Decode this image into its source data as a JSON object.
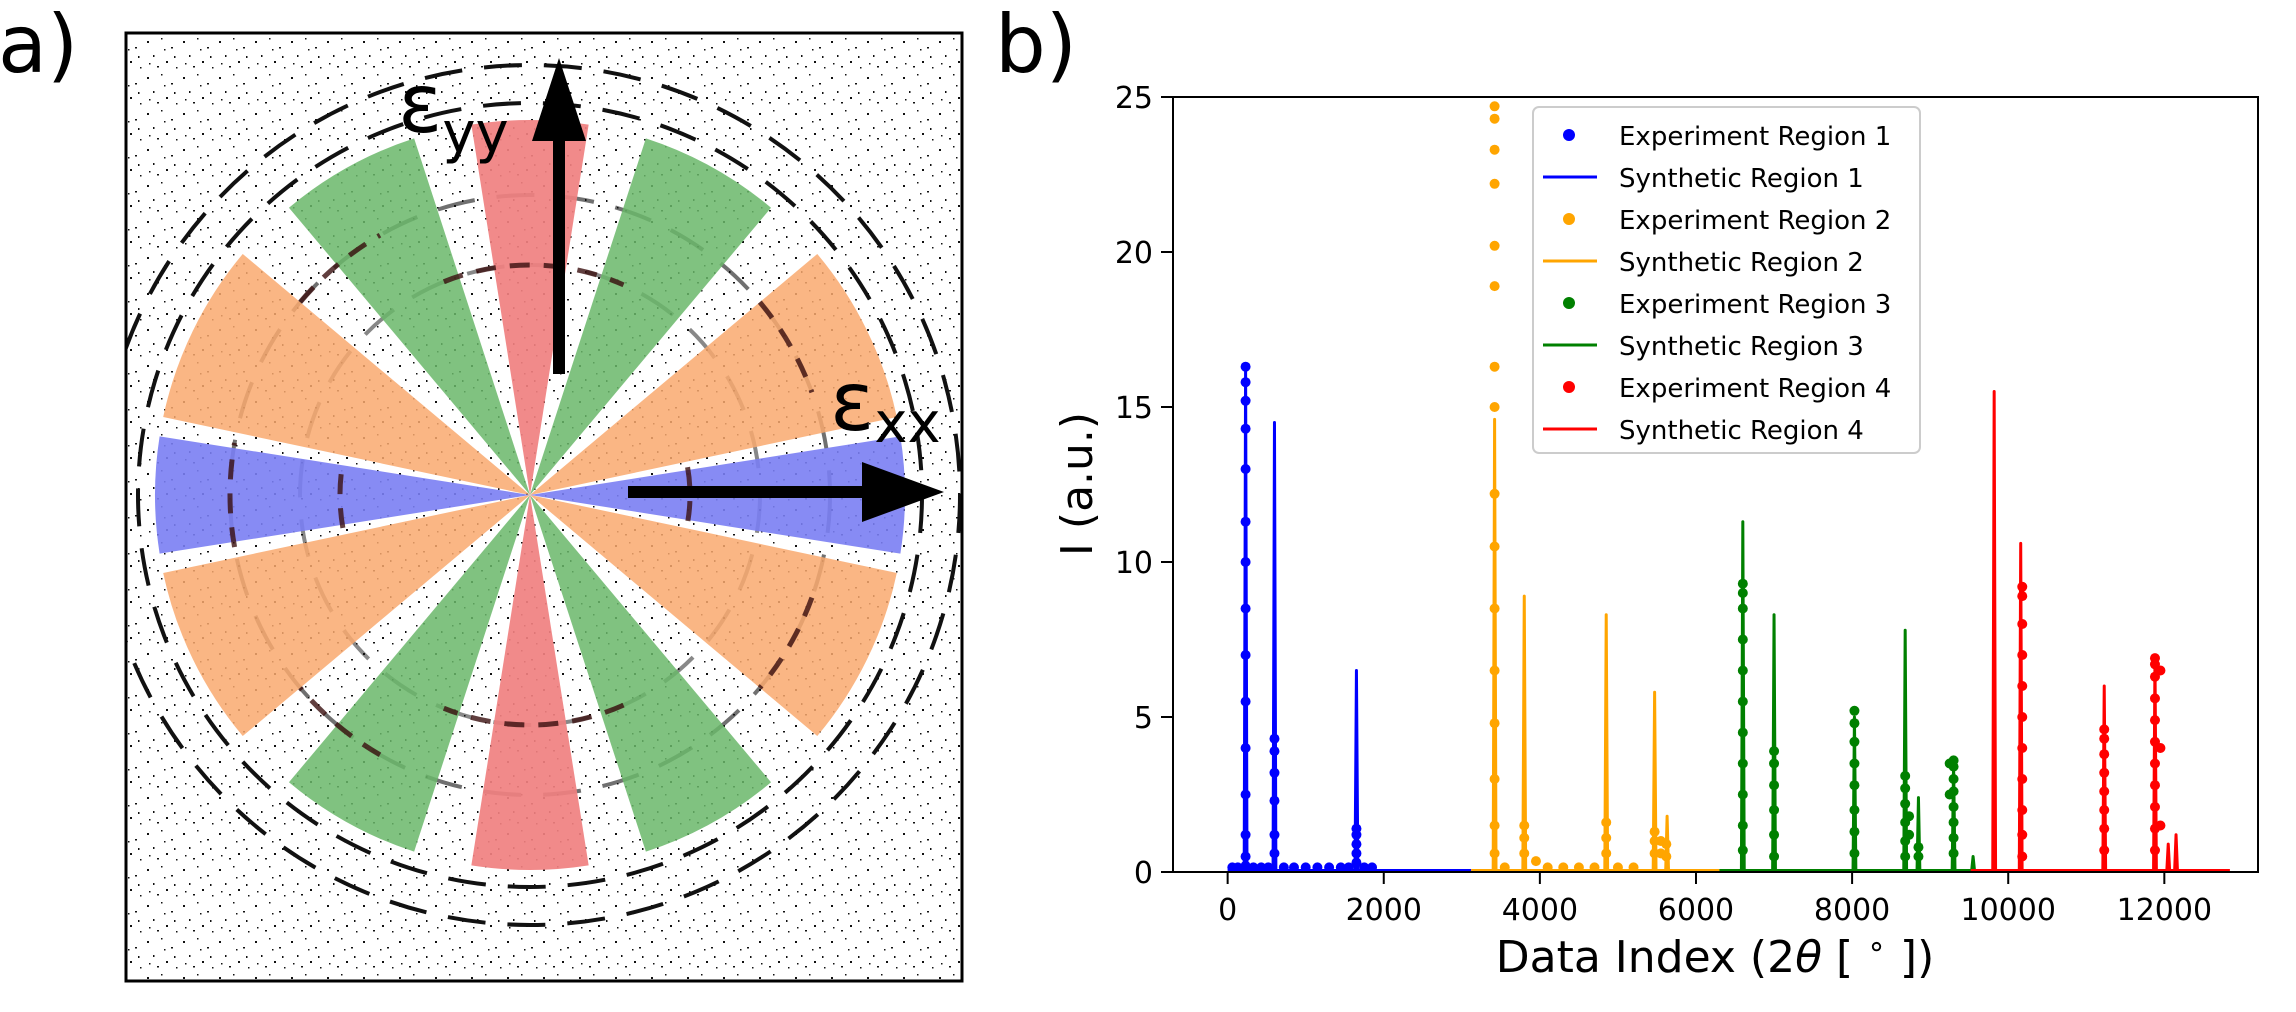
{
  "panel_a": {
    "label": "a)",
    "arrow_yy": {
      "base": "ε",
      "sub": "yy"
    },
    "arrow_xx": {
      "base": "ε",
      "sub": "xx"
    },
    "wedge_colors": {
      "red": "#f08080",
      "green": "#6ab76a",
      "orange": "#f9a96e",
      "blue": "#7a7ef3"
    }
  },
  "panel_b": {
    "label": "b)"
  },
  "chart_data": {
    "type": "line",
    "xlabel_parts": [
      "Data Index (2",
      "θ",
      " [ ",
      "∘",
      " ])"
    ],
    "ylabel": "I (a.u.)",
    "xlim": [
      -700,
      13200
    ],
    "ylim": [
      0,
      25
    ],
    "x_ticks": [
      0,
      2000,
      4000,
      6000,
      8000,
      10000,
      12000
    ],
    "x_tick_labels": [
      "0",
      "2000",
      "4000",
      "6000",
      "8000",
      "10000",
      "12000"
    ],
    "y_ticks": [
      0,
      5,
      10,
      15,
      20,
      25
    ],
    "y_tick_labels": [
      "0",
      "5",
      "10",
      "15",
      "20",
      "25"
    ],
    "legend_position": "top-right",
    "series": [
      {
        "name": "Experiment Region 1",
        "kind": "scatter",
        "color": "#0000ff",
        "points": [
          [
            230,
            16.3
          ],
          [
            230,
            15.8
          ],
          [
            230,
            15.2
          ],
          [
            230,
            14.3
          ],
          [
            230,
            13
          ],
          [
            230,
            11.3
          ],
          [
            230,
            10
          ],
          [
            230,
            8.5
          ],
          [
            230,
            7
          ],
          [
            230,
            5.5
          ],
          [
            230,
            4
          ],
          [
            230,
            2.5
          ],
          [
            230,
            1.2
          ],
          [
            230,
            0.5
          ],
          [
            230,
            0.2
          ],
          [
            600,
            4.3
          ],
          [
            600,
            3.9
          ],
          [
            600,
            3.2
          ],
          [
            600,
            2.3
          ],
          [
            600,
            1.2
          ],
          [
            600,
            0.6
          ],
          [
            1650,
            1.4
          ],
          [
            1650,
            1.2
          ],
          [
            1650,
            0.9
          ],
          [
            1650,
            0.6
          ],
          [
            1650,
            0.3
          ],
          [
            60,
            0.15
          ],
          [
            130,
            0.15
          ],
          [
            330,
            0.15
          ],
          [
            430,
            0.15
          ],
          [
            520,
            0.15
          ],
          [
            720,
            0.15
          ],
          [
            850,
            0.15
          ],
          [
            1000,
            0.15
          ],
          [
            1150,
            0.15
          ],
          [
            1300,
            0.15
          ],
          [
            1450,
            0.15
          ],
          [
            1550,
            0.15
          ],
          [
            1750,
            0.15
          ],
          [
            1850,
            0.15
          ]
        ]
      },
      {
        "name": "Synthetic Region 1",
        "kind": "line",
        "color": "#0000ff",
        "x_range": [
          0,
          3120
        ],
        "baseline": 0.05,
        "peaks": [
          [
            230,
            16.3
          ],
          [
            600,
            14.5
          ],
          [
            1650,
            6.5
          ]
        ]
      },
      {
        "name": "Experiment Region 2",
        "kind": "scatter",
        "color": "#ffa500",
        "points": [
          [
            3420,
            24.7
          ],
          [
            3420,
            24.3
          ],
          [
            3420,
            23.3
          ],
          [
            3420,
            22.2
          ],
          [
            3420,
            20.2
          ],
          [
            3420,
            18.9
          ],
          [
            3420,
            16.3
          ],
          [
            3420,
            15
          ],
          [
            3420,
            12.2
          ],
          [
            3420,
            10.5
          ],
          [
            3420,
            8.5
          ],
          [
            3420,
            6.5
          ],
          [
            3420,
            4.8
          ],
          [
            3420,
            3
          ],
          [
            3420,
            1.5
          ],
          [
            3420,
            0.6
          ],
          [
            3800,
            1.5
          ],
          [
            3800,
            1.1
          ],
          [
            3800,
            0.6
          ],
          [
            4850,
            1.6
          ],
          [
            4850,
            1.1
          ],
          [
            4850,
            0.6
          ],
          [
            5470,
            1.3
          ],
          [
            5470,
            1
          ],
          [
            5470,
            0.6
          ],
          [
            5550,
            1
          ],
          [
            5550,
            0.6
          ],
          [
            5620,
            0.9
          ],
          [
            5620,
            0.5
          ],
          [
            3950,
            0.35
          ],
          [
            3550,
            0.15
          ],
          [
            4100,
            0.15
          ],
          [
            4300,
            0.15
          ],
          [
            4500,
            0.15
          ],
          [
            4700,
            0.15
          ],
          [
            5000,
            0.15
          ],
          [
            5200,
            0.15
          ]
        ]
      },
      {
        "name": "Synthetic Region 2",
        "kind": "line",
        "color": "#ffa500",
        "x_range": [
          3120,
          6300
        ],
        "baseline": 0.05,
        "peaks": [
          [
            3420,
            14.6
          ],
          [
            3800,
            8.9
          ],
          [
            4850,
            8.3
          ],
          [
            5470,
            5.8
          ],
          [
            5630,
            1.8
          ]
        ]
      },
      {
        "name": "Experiment Region 3",
        "kind": "scatter",
        "color": "#008000",
        "points": [
          [
            6600,
            9.3
          ],
          [
            6600,
            9
          ],
          [
            6600,
            8.5
          ],
          [
            6600,
            7.5
          ],
          [
            6600,
            6.5
          ],
          [
            6600,
            5.5
          ],
          [
            6600,
            4.5
          ],
          [
            6600,
            3.5
          ],
          [
            6600,
            2.5
          ],
          [
            6600,
            1.5
          ],
          [
            6600,
            0.7
          ],
          [
            7000,
            3.9
          ],
          [
            7000,
            3.5
          ],
          [
            7000,
            2.8
          ],
          [
            7000,
            2
          ],
          [
            7000,
            1.2
          ],
          [
            7000,
            0.5
          ],
          [
            8030,
            5.2
          ],
          [
            8030,
            4.8
          ],
          [
            8030,
            4.2
          ],
          [
            8030,
            3.5
          ],
          [
            8030,
            2.8
          ],
          [
            8030,
            2
          ],
          [
            8030,
            1.3
          ],
          [
            8030,
            0.6
          ],
          [
            8680,
            3.1
          ],
          [
            8680,
            2.7
          ],
          [
            8680,
            2.2
          ],
          [
            8680,
            1.6
          ],
          [
            8680,
            1
          ],
          [
            8680,
            0.5
          ],
          [
            8730,
            1.8
          ],
          [
            8730,
            1.2
          ],
          [
            8850,
            0.8
          ],
          [
            8850,
            0.5
          ],
          [
            9300,
            3.6
          ],
          [
            9300,
            3.4
          ],
          [
            9300,
            3
          ],
          [
            9300,
            2.6
          ],
          [
            9300,
            2.1
          ],
          [
            9300,
            1.6
          ],
          [
            9300,
            1.1
          ],
          [
            9300,
            0.6
          ],
          [
            9250,
            3.5
          ],
          [
            9250,
            2.5
          ]
        ]
      },
      {
        "name": "Synthetic Region 3",
        "kind": "line",
        "color": "#008000",
        "x_range": [
          6300,
          9520
        ],
        "baseline": 0.05,
        "peaks": [
          [
            6600,
            11.3
          ],
          [
            7000,
            8.3
          ],
          [
            8030,
            5
          ],
          [
            8680,
            7.8
          ],
          [
            8850,
            2.4
          ],
          [
            9300,
            3.5
          ],
          [
            9550,
            0.5
          ]
        ]
      },
      {
        "name": "Experiment Region 4",
        "kind": "scatter",
        "color": "#ff0000",
        "points": [
          [
            10180,
            9.2
          ],
          [
            10180,
            8.9
          ],
          [
            10180,
            8
          ],
          [
            10180,
            7
          ],
          [
            10180,
            6
          ],
          [
            10180,
            5
          ],
          [
            10180,
            4
          ],
          [
            10180,
            3
          ],
          [
            10180,
            2
          ],
          [
            10180,
            1.2
          ],
          [
            10180,
            0.5
          ],
          [
            11230,
            4.6
          ],
          [
            11230,
            4.3
          ],
          [
            11230,
            3.8
          ],
          [
            11230,
            3.2
          ],
          [
            11230,
            2.6
          ],
          [
            11230,
            2
          ],
          [
            11230,
            1.4
          ],
          [
            11230,
            0.7
          ],
          [
            11880,
            6.9
          ],
          [
            11880,
            6.7
          ],
          [
            11880,
            6.3
          ],
          [
            11880,
            5.6
          ],
          [
            11880,
            4.9
          ],
          [
            11880,
            4.2
          ],
          [
            11880,
            3.5
          ],
          [
            11880,
            2.8
          ],
          [
            11880,
            2.1
          ],
          [
            11880,
            1.4
          ],
          [
            11880,
            0.7
          ],
          [
            11950,
            6.5
          ],
          [
            11950,
            4
          ],
          [
            11950,
            1.5
          ]
        ]
      },
      {
        "name": "Synthetic Region 4",
        "kind": "line",
        "color": "#ff0000",
        "x_range": [
          9520,
          12840
        ],
        "baseline": 0.05,
        "peaks": [
          [
            9820,
            15.5
          ],
          [
            10160,
            10.6
          ],
          [
            11230,
            6
          ],
          [
            11880,
            6.9
          ],
          [
            12050,
            0.9
          ],
          [
            12150,
            1.2
          ]
        ]
      }
    ]
  }
}
